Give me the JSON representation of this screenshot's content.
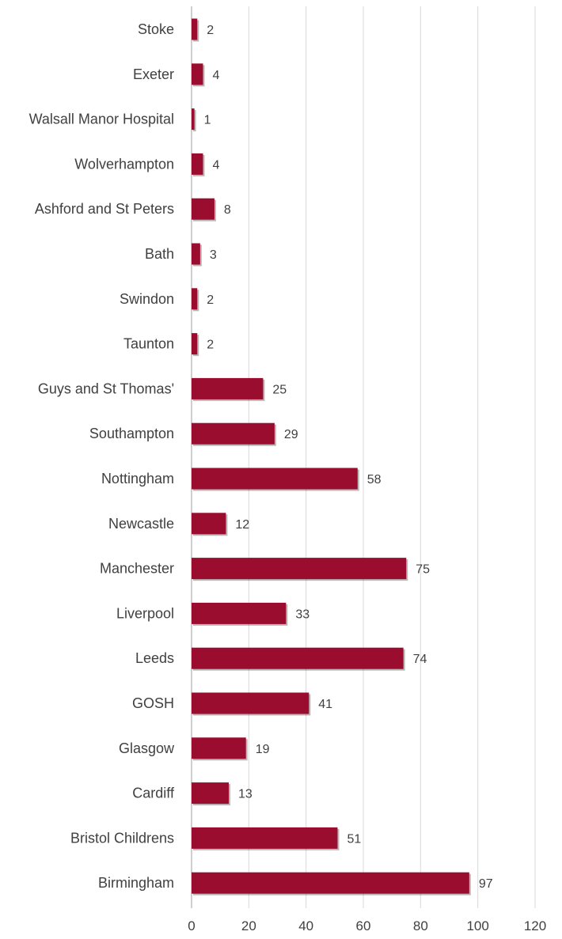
{
  "chart_data": {
    "type": "bar",
    "orientation": "horizontal",
    "categories": [
      "Stoke",
      "Exeter",
      "Walsall Manor Hospital",
      "Wolverhampton",
      "Ashford and St Peters",
      "Bath",
      "Swindon",
      "Taunton",
      "Guys and St Thomas'",
      "Southampton",
      "Nottingham",
      "Newcastle",
      "Manchester",
      "Liverpool",
      "Leeds",
      "GOSH",
      "Glasgow",
      "Cardiff",
      "Bristol Childrens",
      "Birmingham"
    ],
    "values": [
      2,
      4,
      1,
      4,
      8,
      3,
      2,
      2,
      25,
      29,
      58,
      12,
      75,
      33,
      74,
      41,
      19,
      13,
      51,
      97
    ],
    "value_labels": [
      "2",
      "4",
      "1",
      "4",
      "8",
      "3",
      "2",
      "2",
      "25",
      "29",
      "58",
      "12",
      "75",
      "33",
      "74",
      "41",
      "19",
      "13",
      "51",
      "97"
    ],
    "x_ticks": [
      "0",
      "20",
      "40",
      "60",
      "80",
      "100",
      "120"
    ],
    "xlim": [
      0,
      120
    ],
    "grid": "vertical",
    "legend": "none",
    "bar_color": "#9b0d2e",
    "grid_color": "#d9d9d9",
    "text_color": "#404040"
  }
}
